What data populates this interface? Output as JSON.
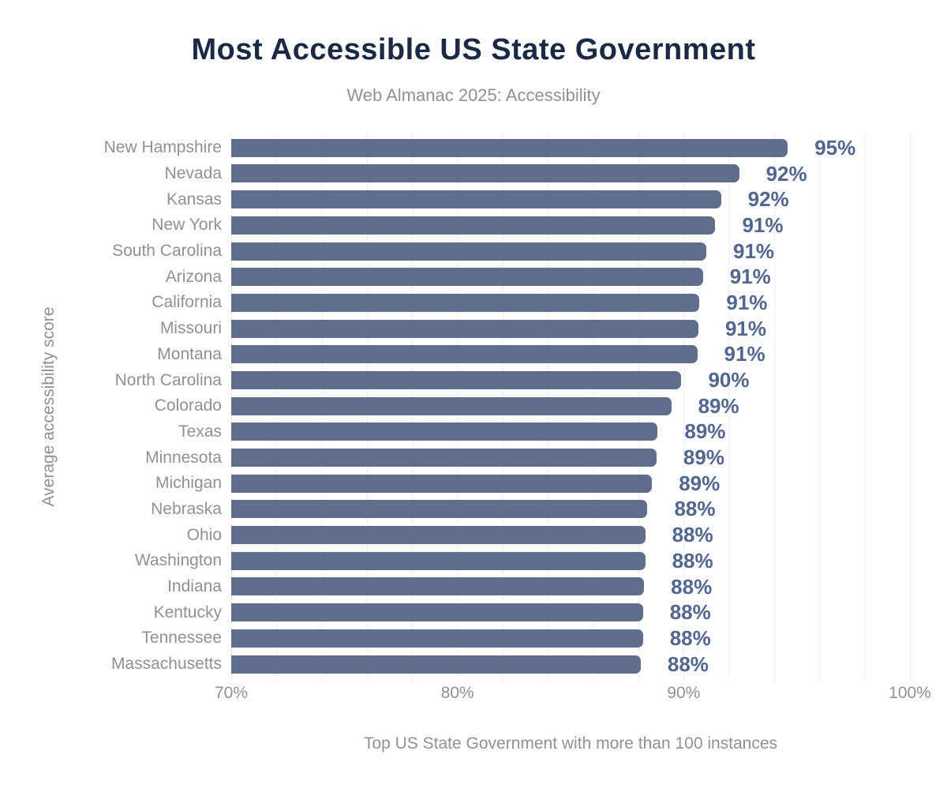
{
  "header": {
    "title": "Most Accessible US State Government",
    "subtitle": "Web Almanac 2025: Accessibility"
  },
  "chart_data": {
    "type": "bar",
    "orientation": "horizontal",
    "title": "Most Accessible US State Government",
    "subtitle": "Web Almanac 2025: Accessibility",
    "ylabel": "Average accessibility score",
    "xlabel": "Top US State Government with more than 100 instances",
    "xlim": [
      70,
      100
    ],
    "x_ticks": [
      "70%",
      "80%",
      "90%",
      "100%"
    ],
    "grid": "vertical minor gridlines every 2%, very light",
    "legend": "none",
    "categories": [
      "New Hampshire",
      "Nevada",
      "Kansas",
      "New York",
      "South Carolina",
      "Arizona",
      "California",
      "Missouri",
      "Montana",
      "North Carolina",
      "Colorado",
      "Texas",
      "Minnesota",
      "Michigan",
      "Nebraska",
      "Ohio",
      "Washington",
      "Indiana",
      "Kentucky",
      "Tennessee",
      "Massachusetts"
    ],
    "values": [
      95,
      92,
      92,
      91,
      91,
      91,
      91,
      91,
      91,
      90,
      89,
      89,
      89,
      89,
      88,
      88,
      88,
      88,
      88,
      88,
      88
    ],
    "value_labels": [
      "95%",
      "92%",
      "92%",
      "91%",
      "91%",
      "91%",
      "91%",
      "91%",
      "91%",
      "90%",
      "89%",
      "89%",
      "89%",
      "89%",
      "88%",
      "88%",
      "88%",
      "88%",
      "88%",
      "88%",
      "88%"
    ],
    "bar_values_precise": [
      94.6,
      92.45,
      91.65,
      91.4,
      91.0,
      90.85,
      90.7,
      90.65,
      90.6,
      89.9,
      89.45,
      88.85,
      88.8,
      88.6,
      88.4,
      88.3,
      88.3,
      88.25,
      88.2,
      88.2,
      88.1
    ],
    "colors": {
      "bar": "#5f6e8c",
      "value_label": "#53668e",
      "title": "#1c2945",
      "axis_text": "#8d9198",
      "gridline": "#ededf1",
      "background": "#ffffff"
    }
  }
}
